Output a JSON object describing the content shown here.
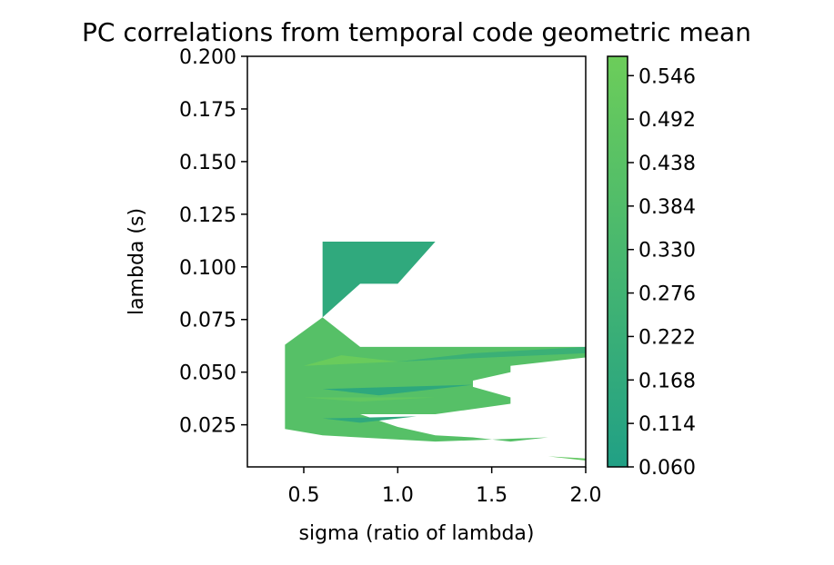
{
  "chart_data": {
    "type": "heatmap",
    "title": "PC correlations from temporal code geometric mean",
    "xlabel": "sigma (ratio of lambda)",
    "ylabel": "lambda (s)",
    "xlim": [
      0.2,
      2.0
    ],
    "ylim": [
      0.005,
      0.2
    ],
    "xticks": [
      0.5,
      1.0,
      1.5,
      2.0
    ],
    "xtick_labels": [
      "0.5",
      "1.0",
      "1.5",
      "2.0"
    ],
    "yticks": [
      0.025,
      0.05,
      0.075,
      0.1,
      0.125,
      0.15,
      0.175,
      0.2
    ],
    "ytick_labels": [
      "0.025",
      "0.050",
      "0.075",
      "0.100",
      "0.125",
      "0.150",
      "0.175",
      "0.200"
    ],
    "colorbar": {
      "min": 0.06,
      "max": 0.57,
      "ticks": [
        0.06,
        0.114,
        0.168,
        0.222,
        0.276,
        0.33,
        0.384,
        0.438,
        0.492,
        0.546
      ],
      "tick_labels": [
        "0.060",
        "0.114",
        "0.168",
        "0.222",
        "0.276",
        "0.330",
        "0.384",
        "0.438",
        "0.492",
        "0.546"
      ],
      "color_low": "#21a085",
      "color_high": "#6ccd5a"
    },
    "regions": [
      {
        "value": 0.16,
        "polygon": [
          [
            0.6,
            0.112
          ],
          [
            1.2,
            0.112
          ],
          [
            1.0,
            0.092
          ],
          [
            0.8,
            0.092
          ],
          [
            0.6,
            0.076
          ]
        ]
      },
      {
        "value": 0.42,
        "polygon": [
          [
            0.4,
            0.063
          ],
          [
            0.6,
            0.076
          ],
          [
            0.8,
            0.062
          ],
          [
            2.0,
            0.062
          ],
          [
            2.0,
            0.057
          ],
          [
            1.6,
            0.053
          ],
          [
            1.6,
            0.05
          ],
          [
            1.4,
            0.046
          ],
          [
            1.4,
            0.043
          ],
          [
            1.6,
            0.038
          ],
          [
            1.6,
            0.035
          ],
          [
            1.2,
            0.03
          ],
          [
            0.8,
            0.03
          ],
          [
            1.0,
            0.024
          ],
          [
            1.2,
            0.02
          ],
          [
            1.4,
            0.019
          ],
          [
            1.6,
            0.017
          ],
          [
            1.8,
            0.019
          ],
          [
            1.2,
            0.017
          ],
          [
            0.6,
            0.02
          ],
          [
            0.4,
            0.023
          ]
        ]
      },
      {
        "value": 0.24,
        "polygon": [
          [
            1.0,
            0.055
          ],
          [
            2.0,
            0.059
          ],
          [
            2.0,
            0.062
          ],
          [
            1.4,
            0.059
          ]
        ]
      },
      {
        "value": 0.55,
        "polygon": [
          [
            0.5,
            0.053
          ],
          [
            1.0,
            0.055
          ],
          [
            0.7,
            0.058
          ]
        ]
      },
      {
        "value": 0.15,
        "polygon": [
          [
            0.6,
            0.042
          ],
          [
            1.4,
            0.044
          ],
          [
            0.9,
            0.039
          ]
        ]
      },
      {
        "value": 0.5,
        "polygon": [
          [
            0.5,
            0.038
          ],
          [
            1.2,
            0.038
          ],
          [
            0.8,
            0.036
          ]
        ]
      },
      {
        "value": 0.16,
        "polygon": [
          [
            0.6,
            0.028
          ],
          [
            1.1,
            0.029
          ],
          [
            0.8,
            0.026
          ]
        ]
      },
      {
        "value": 0.5,
        "polygon": [
          [
            1.8,
            0.01
          ],
          [
            2.0,
            0.009
          ],
          [
            2.0,
            0.008
          ]
        ]
      }
    ]
  }
}
